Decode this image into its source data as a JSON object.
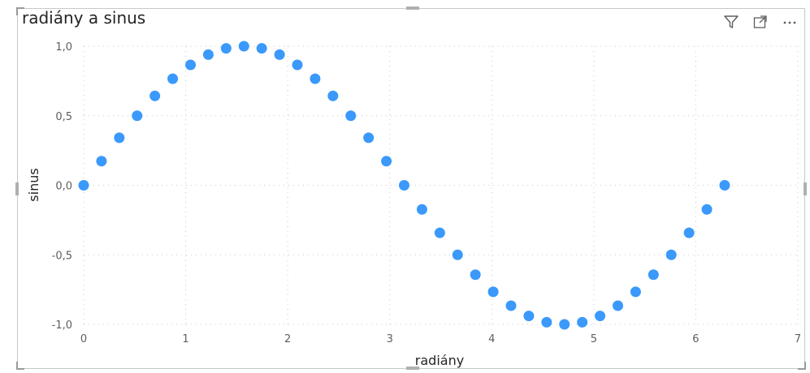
{
  "visual": {
    "title": "radiány a sinus",
    "toolbar": {
      "filter_icon": "filter-icon",
      "focus_icon": "focus-mode-icon",
      "more_icon": "more-options-icon"
    }
  },
  "chart_data": {
    "type": "scatter",
    "title": "radiány a sinus",
    "xlabel": "radiány",
    "ylabel": "sinus",
    "xlim": [
      0,
      7
    ],
    "ylim": [
      -1,
      1
    ],
    "xticks": [
      "0",
      "1",
      "2",
      "3",
      "4",
      "5",
      "6",
      "7"
    ],
    "yticks": [
      "1,0",
      "0,5",
      "0,0",
      "-0,5",
      "-1,0"
    ],
    "grid": true,
    "color": "#3a99fb",
    "x": [
      0,
      0.1745,
      0.3491,
      0.5236,
      0.6981,
      0.8727,
      1.0472,
      1.2217,
      1.3963,
      1.5708,
      1.7453,
      1.9199,
      2.0944,
      2.2689,
      2.4435,
      2.618,
      2.7925,
      2.9671,
      3.1416,
      3.3161,
      3.4907,
      3.6652,
      3.8397,
      4.0143,
      4.1888,
      4.3633,
      4.5379,
      4.7124,
      4.8869,
      5.0615,
      5.236,
      5.4105,
      5.5851,
      5.7596,
      5.9341,
      6.1087,
      6.2832
    ],
    "y": [
      0,
      0.1736,
      0.342,
      0.5,
      0.6428,
      0.766,
      0.866,
      0.9397,
      0.9848,
      1,
      0.9848,
      0.9397,
      0.866,
      0.766,
      0.6428,
      0.5,
      0.342,
      0.1736,
      0,
      -0.1736,
      -0.342,
      -0.5,
      -0.6428,
      -0.766,
      -0.866,
      -0.9397,
      -0.9848,
      -1,
      -0.9848,
      -0.9397,
      -0.866,
      -0.766,
      -0.6428,
      -0.5,
      -0.342,
      -0.1736,
      0
    ]
  }
}
